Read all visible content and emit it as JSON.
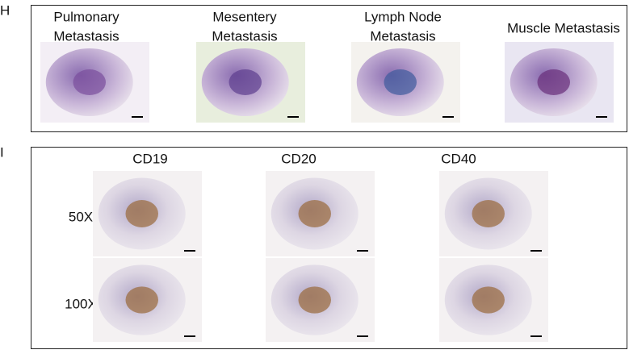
{
  "panel_h": {
    "label": "H",
    "images": [
      {
        "title": [
          "Pulmonary",
          "Metastasis"
        ]
      },
      {
        "title": [
          "Mesentery",
          "Metastasis"
        ]
      },
      {
        "title": [
          "Lymph Node",
          "Metastasis"
        ]
      },
      {
        "title": [
          "Muscle Metastasis"
        ]
      }
    ]
  },
  "panel_i": {
    "label": "I",
    "columns": [
      "CD19",
      "CD20",
      "CD40"
    ],
    "rows": [
      "50X",
      "100X"
    ]
  }
}
